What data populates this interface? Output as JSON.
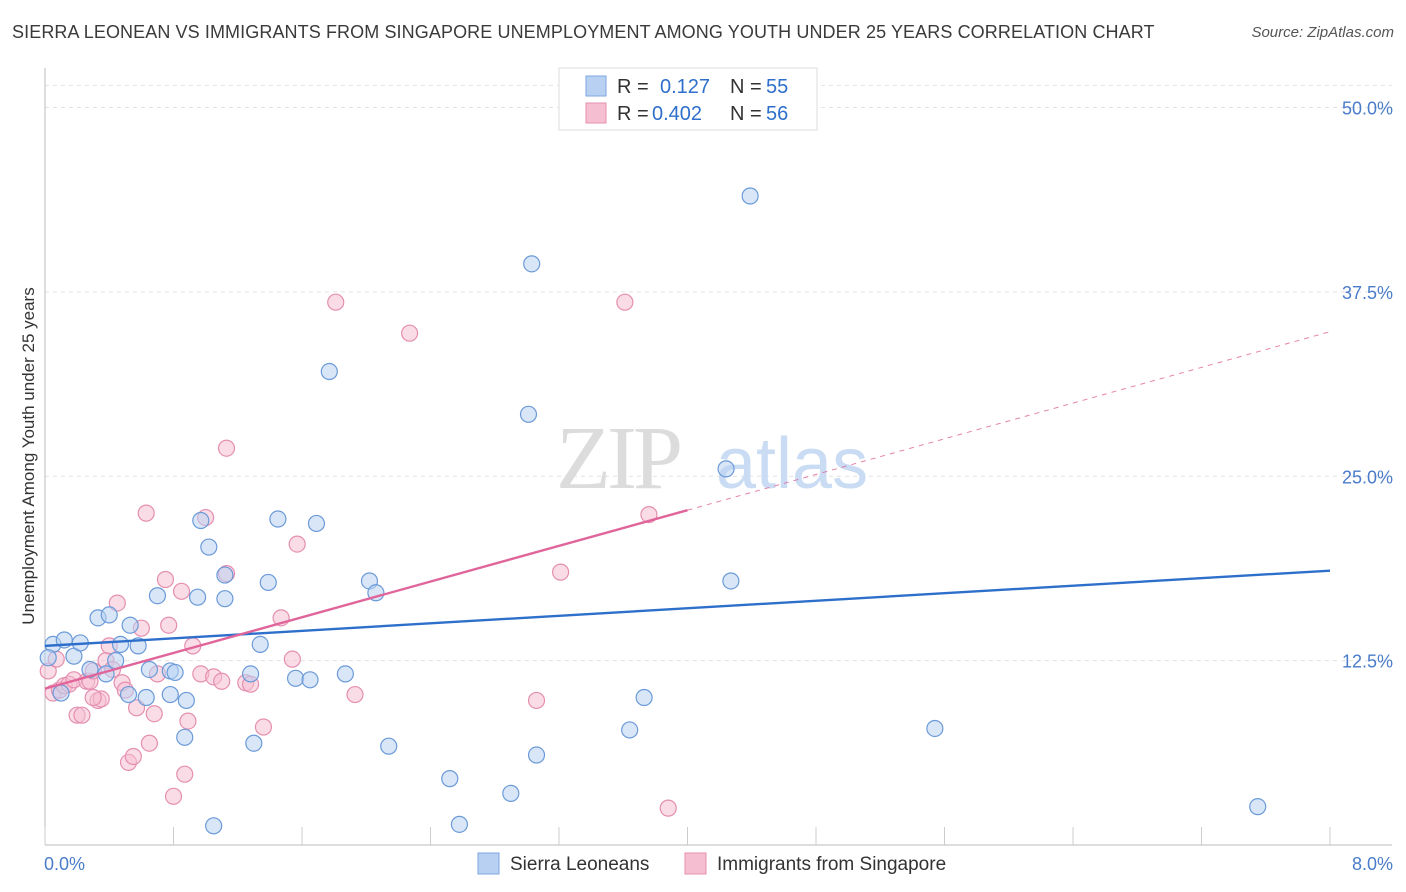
{
  "header": {
    "title": "SIERRA LEONEAN VS IMMIGRANTS FROM SINGAPORE UNEMPLOYMENT AMONG YOUTH UNDER 25 YEARS CORRELATION CHART",
    "source": "Source: ZipAtlas.com"
  },
  "watermark": "ZIPatlas",
  "colors": {
    "blue": "#2e6fcb",
    "blue_fill": "#b8d1f3",
    "pink": "#e0659a",
    "pink_fill": "#f6bfd1",
    "tick_text": "#4a7cc9",
    "grid": "#e2e2e2"
  },
  "chart_data": {
    "type": "scatter",
    "title": "SIERRA LEONEAN VS IMMIGRANTS FROM SINGAPORE UNEMPLOYMENT AMONG YOUTH UNDER 25 YEARS CORRELATION CHART",
    "xlabel": "",
    "ylabel": "Unemployment Among Youth under 25 years",
    "xlim": [
      0,
      8
    ],
    "ylim": [
      0,
      52
    ],
    "x_tick_labels": [
      "0.0%",
      "8.0%"
    ],
    "y_ticks": [
      12.5,
      25,
      37.5,
      50
    ],
    "y_tick_labels": [
      "12.5%",
      "25.0%",
      "37.5%",
      "50.0%"
    ],
    "legend": {
      "position": "top-center",
      "entries": [
        {
          "r_label": "R =",
          "r_value": "0.127",
          "n_label": "N =",
          "n_value": "55"
        },
        {
          "r_label": "R =",
          "r_value": "0.402",
          "n_label": "N =",
          "n_value": "56"
        }
      ]
    },
    "bottom_legend": [
      "Sierra Leoneans",
      "Immigrants from Singapore"
    ],
    "series": [
      {
        "name": "Sierra Leoneans",
        "r": 0.127,
        "n": 55,
        "trend": {
          "x0": 0.0,
          "y0": 13.5,
          "x1": 8.0,
          "y1": 18.6
        },
        "points": [
          [
            0.05,
            13.6
          ],
          [
            0.12,
            13.9
          ],
          [
            0.18,
            12.8
          ],
          [
            0.22,
            13.7
          ],
          [
            0.28,
            11.9
          ],
          [
            0.33,
            15.4
          ],
          [
            0.38,
            11.6
          ],
          [
            0.4,
            15.6
          ],
          [
            0.44,
            12.5
          ],
          [
            0.47,
            13.6
          ],
          [
            0.52,
            10.2
          ],
          [
            0.53,
            14.9
          ],
          [
            0.58,
            13.5
          ],
          [
            0.63,
            10.0
          ],
          [
            0.65,
            11.9
          ],
          [
            0.7,
            16.9
          ],
          [
            0.78,
            11.8
          ],
          [
            0.78,
            10.2
          ],
          [
            0.81,
            11.7
          ],
          [
            0.87,
            7.3
          ],
          [
            0.88,
            9.8
          ],
          [
            0.95,
            16.8
          ],
          [
            0.97,
            22.0
          ],
          [
            1.02,
            20.2
          ],
          [
            1.05,
            1.3
          ],
          [
            1.12,
            16.7
          ],
          [
            1.12,
            18.3
          ],
          [
            1.28,
            11.6
          ],
          [
            1.3,
            6.9
          ],
          [
            1.34,
            13.6
          ],
          [
            1.39,
            17.8
          ],
          [
            1.45,
            22.1
          ],
          [
            1.56,
            11.3
          ],
          [
            1.65,
            11.2
          ],
          [
            1.69,
            21.8
          ],
          [
            1.77,
            32.1
          ],
          [
            1.87,
            11.6
          ],
          [
            2.02,
            17.9
          ],
          [
            2.06,
            17.1
          ],
          [
            2.14,
            6.7
          ],
          [
            2.52,
            4.5
          ],
          [
            2.58,
            1.4
          ],
          [
            2.9,
            3.5
          ],
          [
            3.01,
            29.2
          ],
          [
            3.03,
            39.4
          ],
          [
            3.06,
            6.1
          ],
          [
            3.64,
            7.8
          ],
          [
            3.73,
            10.0
          ],
          [
            4.24,
            25.5
          ],
          [
            4.27,
            17.9
          ],
          [
            4.39,
            44.0
          ],
          [
            5.54,
            7.9
          ],
          [
            7.55,
            2.6
          ],
          [
            0.02,
            12.7
          ],
          [
            0.1,
            10.3
          ]
        ]
      },
      {
        "name": "Immigrants from Singapore",
        "r": 0.402,
        "n": 56,
        "trend": {
          "x0": 0.0,
          "y0": 10.6,
          "x1": 4.0,
          "y1": 22.7
        },
        "trend_dashed": {
          "x0": 4.0,
          "y0": 22.7,
          "x1": 8.0,
          "y1": 34.8
        },
        "points": [
          [
            0.02,
            11.8
          ],
          [
            0.05,
            10.3
          ],
          [
            0.07,
            12.6
          ],
          [
            0.09,
            10.5
          ],
          [
            0.12,
            10.8
          ],
          [
            0.15,
            10.9
          ],
          [
            0.18,
            11.2
          ],
          [
            0.2,
            8.8
          ],
          [
            0.23,
            8.8
          ],
          [
            0.26,
            11.1
          ],
          [
            0.28,
            11.1
          ],
          [
            0.3,
            11.8
          ],
          [
            0.33,
            9.8
          ],
          [
            0.35,
            9.9
          ],
          [
            0.38,
            12.5
          ],
          [
            0.4,
            13.5
          ],
          [
            0.42,
            11.9
          ],
          [
            0.45,
            16.4
          ],
          [
            0.48,
            11.0
          ],
          [
            0.5,
            10.5
          ],
          [
            0.52,
            5.6
          ],
          [
            0.55,
            6.0
          ],
          [
            0.57,
            9.3
          ],
          [
            0.6,
            14.7
          ],
          [
            0.63,
            22.5
          ],
          [
            0.65,
            6.9
          ],
          [
            0.68,
            8.9
          ],
          [
            0.7,
            11.6
          ],
          [
            0.75,
            18.0
          ],
          [
            0.77,
            14.9
          ],
          [
            0.8,
            3.3
          ],
          [
            0.85,
            17.2
          ],
          [
            0.87,
            4.8
          ],
          [
            0.89,
            8.4
          ],
          [
            0.92,
            13.5
          ],
          [
            0.97,
            11.6
          ],
          [
            1.0,
            22.2
          ],
          [
            1.05,
            11.4
          ],
          [
            1.1,
            11.1
          ],
          [
            1.13,
            18.4
          ],
          [
            1.13,
            26.9
          ],
          [
            1.25,
            11.0
          ],
          [
            1.28,
            10.9
          ],
          [
            1.36,
            8.0
          ],
          [
            1.47,
            15.4
          ],
          [
            1.54,
            12.6
          ],
          [
            1.57,
            20.4
          ],
          [
            1.81,
            36.8
          ],
          [
            1.93,
            10.2
          ],
          [
            2.27,
            34.7
          ],
          [
            3.06,
            9.8
          ],
          [
            3.21,
            18.5
          ],
          [
            3.61,
            36.8
          ],
          [
            3.76,
            22.4
          ],
          [
            3.88,
            2.5
          ],
          [
            0.3,
            10.0
          ]
        ]
      }
    ]
  }
}
